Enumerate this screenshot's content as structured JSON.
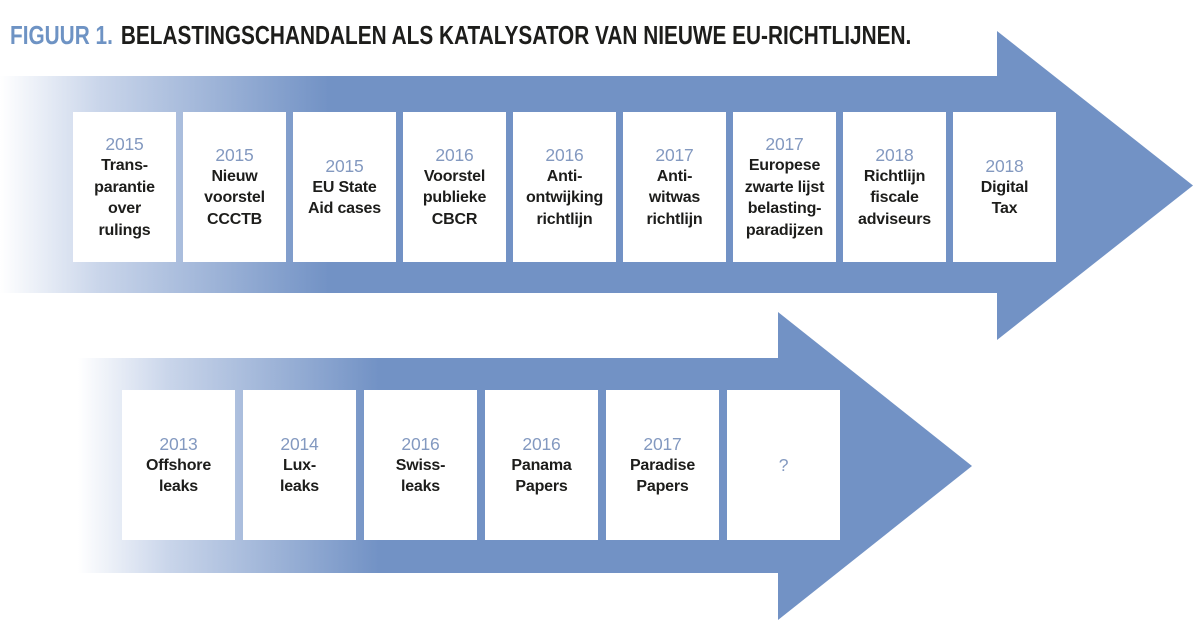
{
  "title": {
    "prefix": "FIGUUR 1.",
    "text": "BELASTINGSCHANDALEN ALS KATALYSATOR VAN NIEUWE EU-RICHTLIJNEN."
  },
  "colors": {
    "arrow_blue": "#7292c5",
    "year_blue": "#8399c0",
    "title_blue": "#6e93c4",
    "text_dark": "#1d1d1b"
  },
  "top_arrow": {
    "cards": [
      {
        "year": "2015",
        "lines": [
          "Trans-",
          "parantie",
          "over",
          "rulings"
        ]
      },
      {
        "year": "2015",
        "lines": [
          "Nieuw",
          "voorstel",
          "CCCTB"
        ]
      },
      {
        "year": "2015",
        "lines": [
          "EU State",
          "Aid cases"
        ]
      },
      {
        "year": "2016",
        "lines": [
          "Voorstel",
          "publieke",
          "CBCR"
        ]
      },
      {
        "year": "2016",
        "lines": [
          "Anti-",
          "ontwijking",
          "richtlijn"
        ]
      },
      {
        "year": "2017",
        "lines": [
          "Anti-",
          "witwas",
          "richtlijn"
        ]
      },
      {
        "year": "2017",
        "lines": [
          "Europese",
          "zwarte lijst",
          "belasting-",
          "paradijzen"
        ]
      },
      {
        "year": "2018",
        "lines": [
          "Richtlijn",
          "fiscale",
          "adviseurs"
        ]
      },
      {
        "year": "2018",
        "lines": [
          "Digital",
          "Tax"
        ]
      }
    ]
  },
  "bottom_arrow": {
    "cards": [
      {
        "year": "2013",
        "lines": [
          "Offshore",
          "leaks"
        ]
      },
      {
        "year": "2014",
        "lines": [
          "Lux-",
          "leaks"
        ]
      },
      {
        "year": "2016",
        "lines": [
          "Swiss-",
          "leaks"
        ]
      },
      {
        "year": "2016",
        "lines": [
          "Panama",
          "Papers"
        ]
      },
      {
        "year": "2017",
        "lines": [
          "Paradise",
          "Papers"
        ]
      },
      {
        "year": "?",
        "lines": []
      }
    ]
  }
}
